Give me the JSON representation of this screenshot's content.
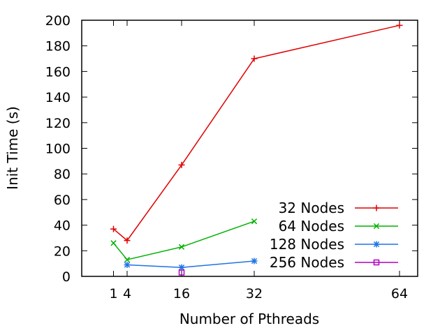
{
  "chart_data": {
    "type": "line",
    "title": "",
    "xlabel": "Number of Pthreads",
    "ylabel": "Init Time (s)",
    "xlim": [
      -6,
      68
    ],
    "ylim": [
      0,
      200
    ],
    "xticks": [
      1,
      4,
      16,
      32,
      64
    ],
    "yticks": [
      0,
      20,
      40,
      60,
      80,
      100,
      120,
      140,
      160,
      180,
      200
    ],
    "grid": false,
    "legend_position": "bottom-right",
    "series": [
      {
        "name": "32 Nodes",
        "color": "#e00000",
        "marker": "plus",
        "x": [
          1,
          4,
          16,
          32,
          64
        ],
        "y": [
          37,
          28,
          87,
          170,
          196
        ]
      },
      {
        "name": "64 Nodes",
        "color": "#00b000",
        "marker": "cross",
        "x": [
          1,
          4,
          16,
          32
        ],
        "y": [
          26,
          13,
          23,
          43
        ]
      },
      {
        "name": "128 Nodes",
        "color": "#1e74e6",
        "marker": "star",
        "x": [
          4,
          16,
          32
        ],
        "y": [
          9,
          7,
          12
        ]
      },
      {
        "name": "256 Nodes",
        "color": "#b000c0",
        "marker": "square",
        "x": [
          16
        ],
        "y": [
          3
        ]
      }
    ]
  }
}
